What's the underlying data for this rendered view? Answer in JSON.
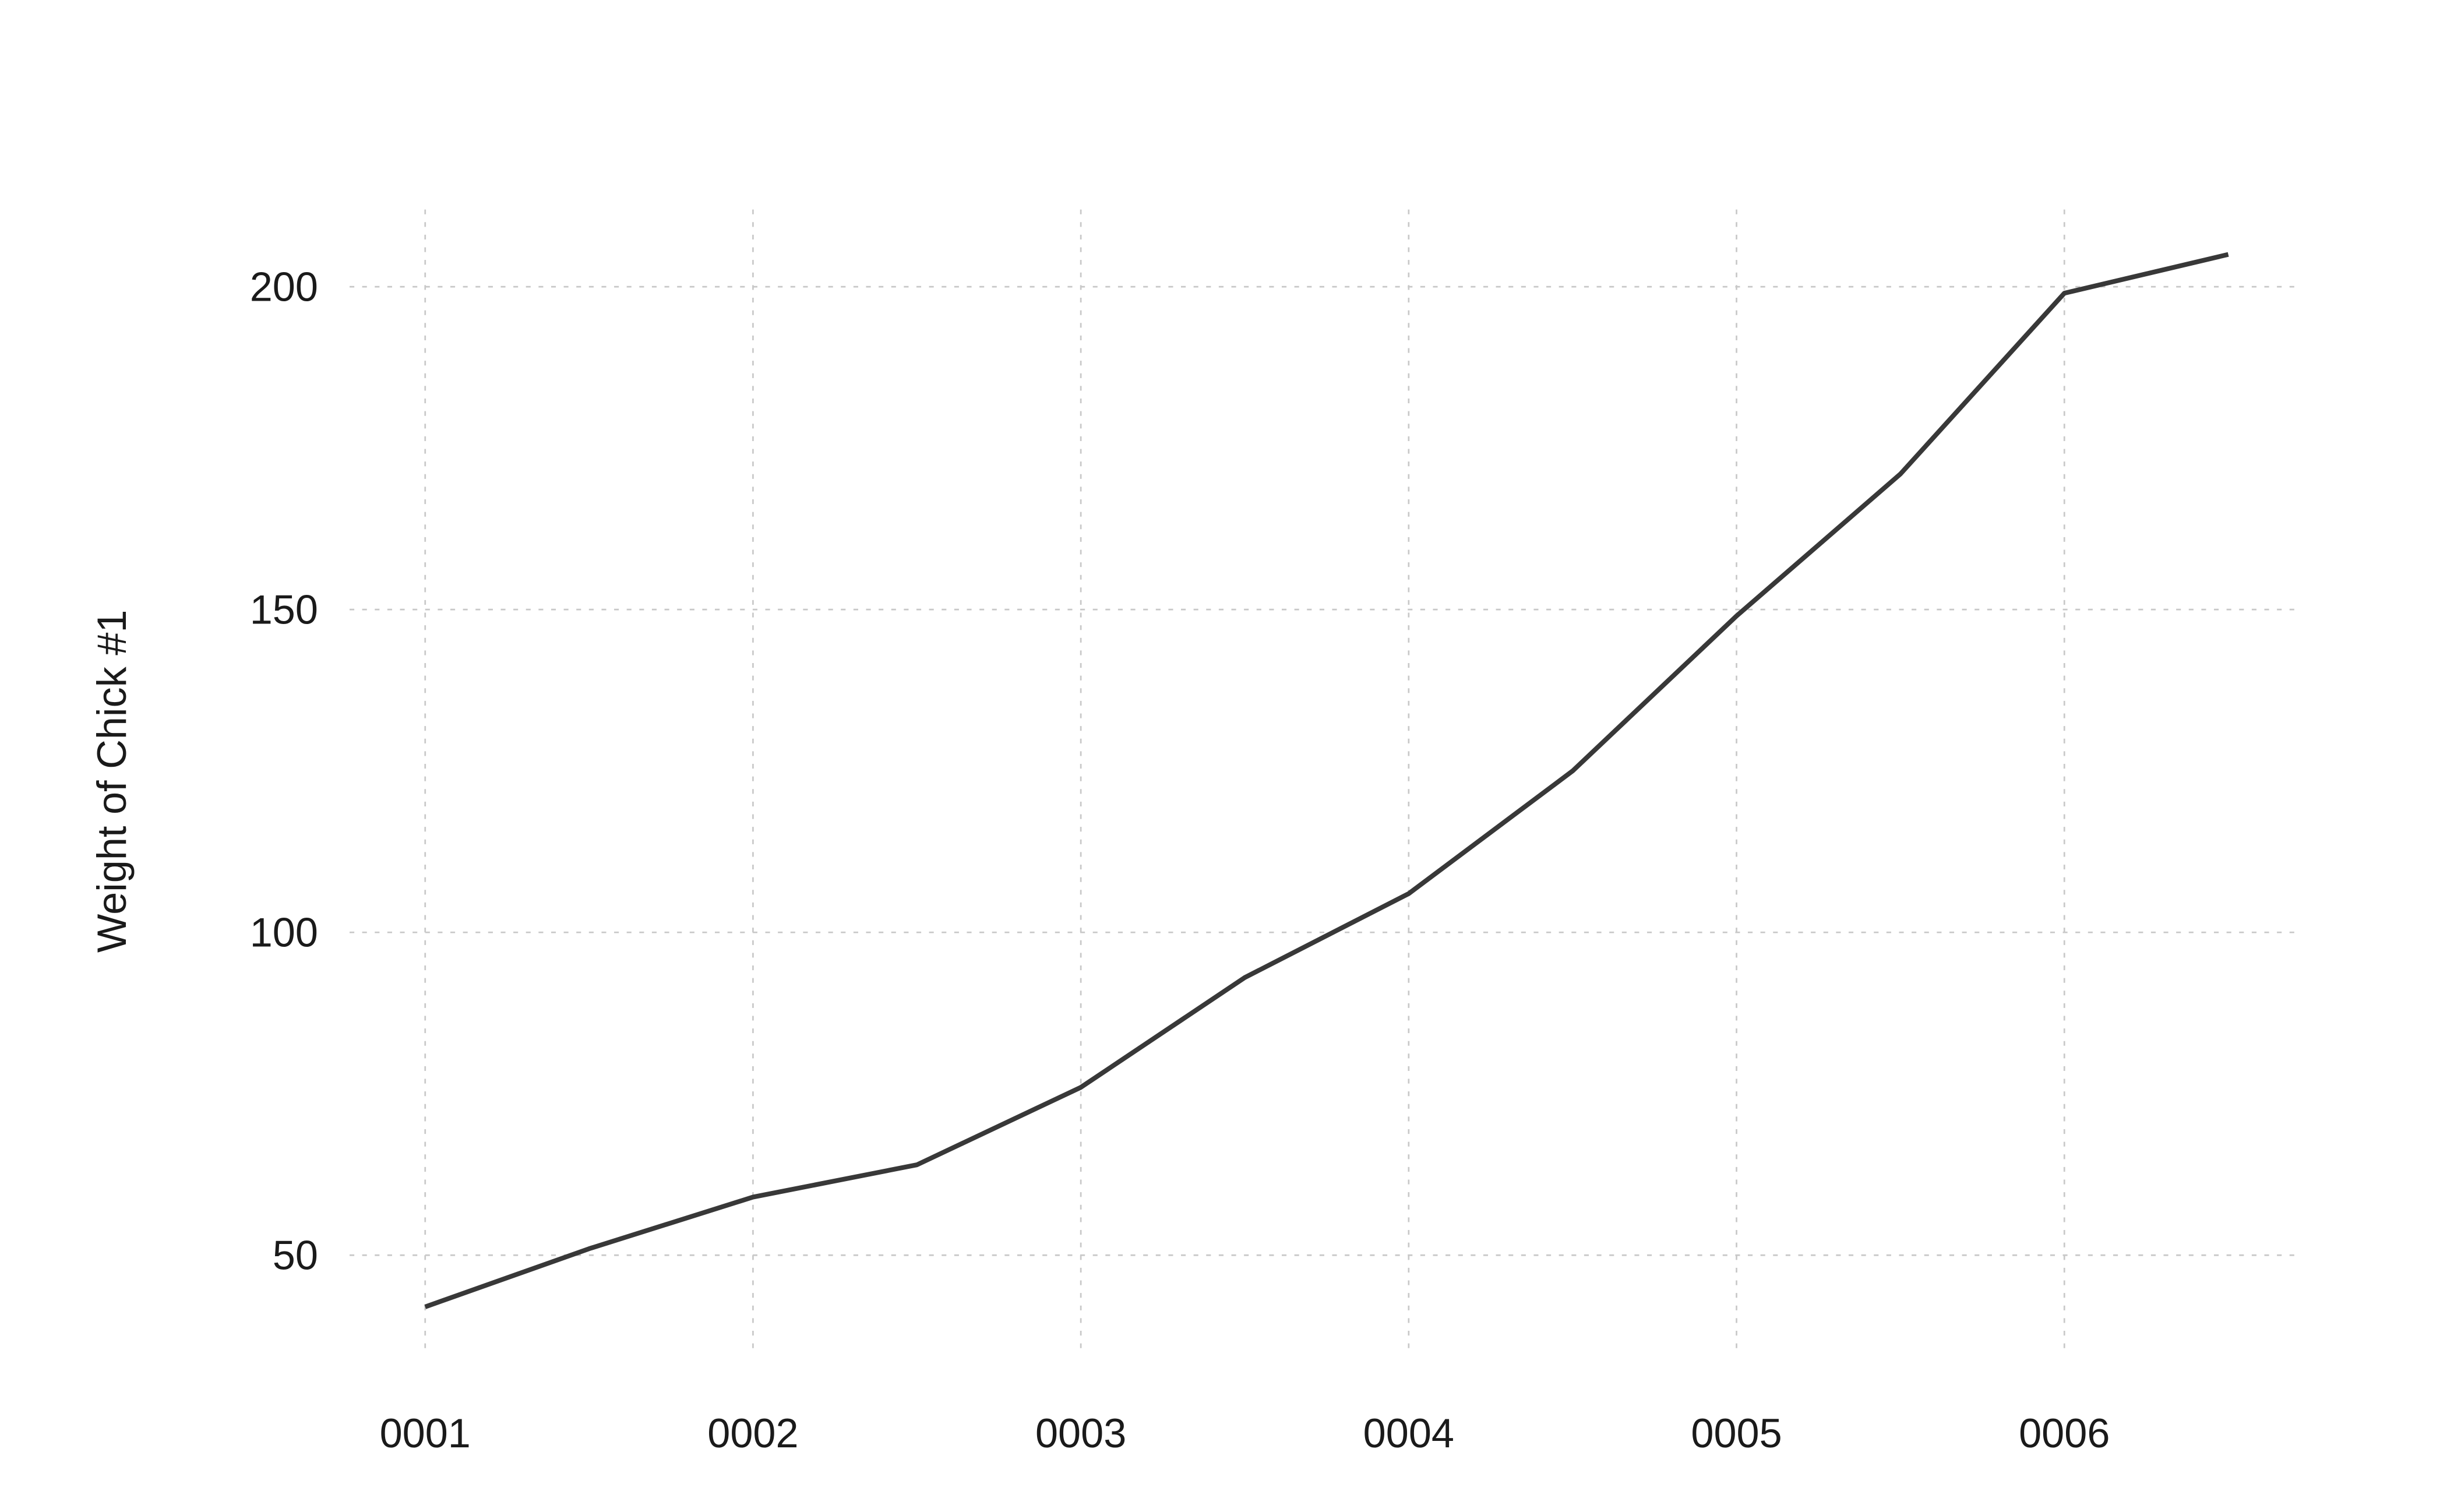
{
  "chart_data": {
    "type": "line",
    "title": "",
    "xlabel": "",
    "ylabel": "Weight of Chick #1",
    "x_ticks": [
      1,
      2,
      3,
      4,
      5,
      6
    ],
    "x_tick_labels": [
      "0001",
      "0002",
      "0003",
      "0004",
      "0005",
      "0006"
    ],
    "y_ticks": [
      50,
      100,
      150,
      200
    ],
    "y_tick_labels": [
      "50",
      "100",
      "150",
      "200"
    ],
    "xlim": [
      1,
      6.5
    ],
    "ylim": [
      42,
      205
    ],
    "grid": true,
    "grid_style": "dotted",
    "line_color": "#383838",
    "series": [
      {
        "x": [
          1,
          1.5,
          2,
          2.5,
          3,
          3.5,
          4,
          4.5,
          5,
          5.5,
          6,
          6.5
        ],
        "values": [
          42,
          51,
          59,
          64,
          76,
          93,
          106,
          125,
          149,
          171,
          199,
          205
        ]
      }
    ]
  }
}
